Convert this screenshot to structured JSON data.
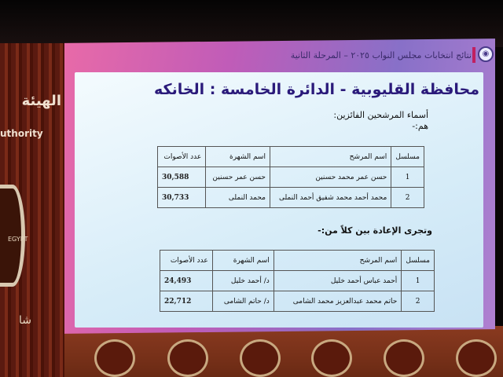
{
  "background": {
    "left_panel_text": "الهيئة",
    "left_panel_text_en": "uthority",
    "left_panel_emblem_text": "EGYPT",
    "left_panel_text_bottom": "شا"
  },
  "slide": {
    "header": "نتائج انتخابات مجلس النواب ٢٠٢٥ – المرحلة الثانية",
    "title": "محافظة القليوبية - الدائرة الخامسة : الخانكه",
    "winners_label": "أسماء المرشحين الفائزين:",
    "winners_sub": "هم:-",
    "runoff_label": "وتجرى الإعادة بين كلاً من:-",
    "columns": [
      "مسلسل",
      "اسم المرشح",
      "اسم الشهرة",
      "عدد الأصوات"
    ],
    "winners": [
      {
        "serial": "1",
        "name": "حسن عمر محمد حسنين",
        "nickname": "حسن عمر حسنين",
        "votes": "30,588"
      },
      {
        "serial": "2",
        "name": "محمد أحمد محمد شفيق أحمد النملى",
        "nickname": "محمد النملى",
        "votes": "30,733"
      }
    ],
    "runoff": [
      {
        "serial": "1",
        "name": "أحمد عباس أحمد خليل",
        "nickname": "د/ أحمد خليل",
        "votes": "24,493"
      },
      {
        "serial": "2",
        "name": "حاتم محمد عبدالعزيز محمد الشامى",
        "nickname": "د/ حاتم الشامى",
        "votes": "22,712"
      }
    ]
  }
}
